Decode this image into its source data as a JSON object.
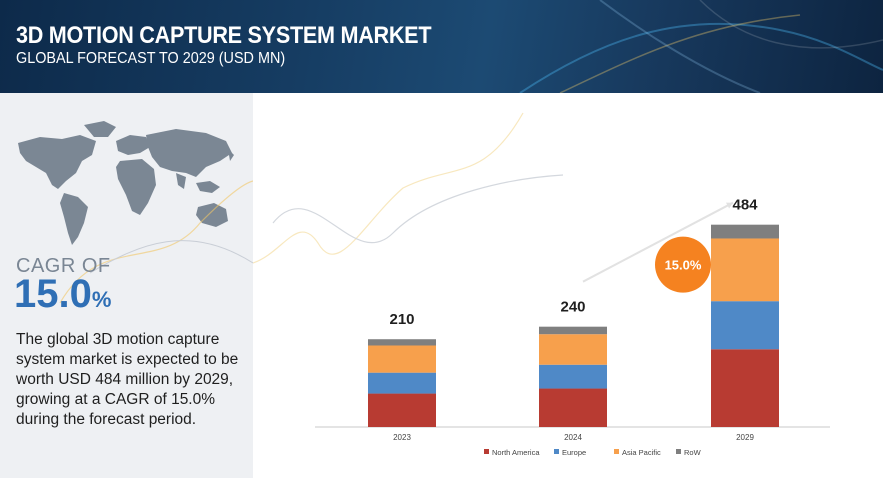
{
  "header": {
    "title": "3D MOTION CAPTURE SYSTEM  MARKET",
    "subtitle": "GLOBAL FORECAST TO 2029 (USD MN)"
  },
  "left_panel": {
    "cagr_label": "CAGR OF",
    "cagr_value": "15.0",
    "cagr_unit": "%",
    "description": "The global 3D motion capture system market is expected to be worth USD 484 million by 2029, growing at a CAGR of 15.0% during the forecast period."
  },
  "chart_data": {
    "type": "bar",
    "stacked": true,
    "categories": [
      "2023",
      "2024",
      "2029"
    ],
    "totals": [
      210,
      240,
      484
    ],
    "series": [
      {
        "name": "North America",
        "color": "#b83b32",
        "values": [
          80,
          92,
          186
        ]
      },
      {
        "name": "Europe",
        "color": "#4f89c7",
        "values": [
          50,
          57,
          115
        ]
      },
      {
        "name": "Asia Pacific",
        "color": "#f7a04c",
        "values": [
          65,
          73,
          150
        ]
      },
      {
        "name": "RoW",
        "color": "#7f7f7f",
        "values": [
          15,
          18,
          33
        ]
      }
    ],
    "cagr_bubble": "15.0%",
    "cagr_color": "#f58220",
    "legend_position": "bottom",
    "grid": false
  }
}
